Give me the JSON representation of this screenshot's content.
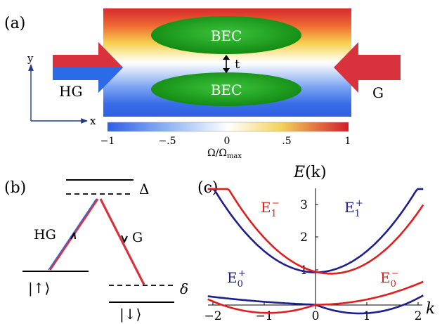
{
  "panel_a": {
    "label": "(a)",
    "bec_top": "BEC",
    "bec_bottom": "BEC",
    "tunneling": "t",
    "beam_left": "HG",
    "beam_right": "G",
    "axis_y": "y",
    "axis_x": "x",
    "colorbar": {
      "ticks": [
        "−1",
        "−.5",
        "0",
        ".5",
        "1"
      ],
      "label_main": "Ω/Ω",
      "label_sub": "max",
      "colors": [
        "#2f5fe6",
        "#8fb4f5",
        "#ffffff",
        "#f4d25a",
        "#d21e2a"
      ]
    },
    "colors": {
      "bec": "#17a317",
      "beam_red": "#d8333d",
      "beam_blue": "#2c6be8",
      "axes": "#1e3c8c"
    }
  },
  "panel_b": {
    "label": "(b)",
    "detuning_upper": "Δ",
    "detuning_lower": "δ",
    "beam_left": "HG",
    "beam_right": "G",
    "state_up": "|↑⟩",
    "state_down": "|↓⟩"
  },
  "panel_c": {
    "label": "(c)",
    "y_label": "E(k)",
    "x_label": "k",
    "x_ticks": [
      "−2",
      "−1",
      "0",
      "1",
      "2"
    ],
    "y_ticks": [
      "1",
      "2",
      "3"
    ],
    "curves": {
      "E1_minus": {
        "base": "E",
        "sub": "1",
        "sup": "−"
      },
      "E1_plus": {
        "base": "E",
        "sub": "1",
        "sup": "+"
      },
      "E0_plus": {
        "base": "E",
        "sub": "0",
        "sup": "+"
      },
      "E0_minus": {
        "base": "E",
        "sub": "0",
        "sup": "−"
      }
    },
    "colors": {
      "plus": "#1e1e8c",
      "minus": "#e11e1e"
    }
  }
}
